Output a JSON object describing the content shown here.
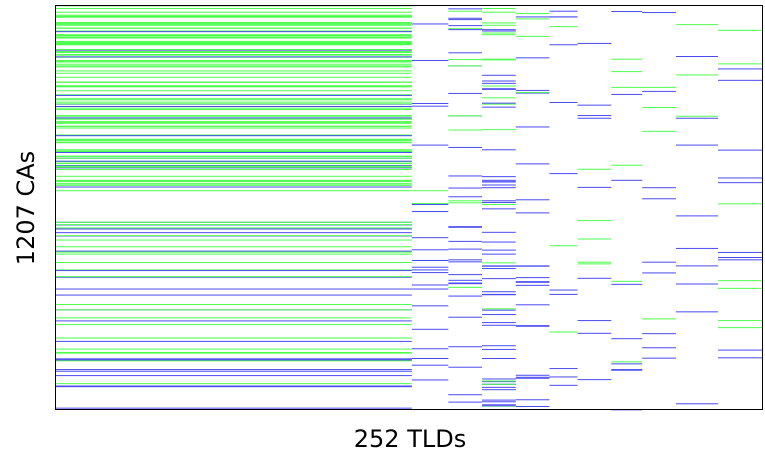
{
  "chart_data": {
    "type": "heatmap",
    "title": "",
    "xlabel": "252 TLDs",
    "ylabel": "1207 CAs",
    "n_cols": 252,
    "n_rows": 1207,
    "grid": false,
    "legend": "none",
    "colors": {
      "present_green": "#4dff4d",
      "present_blue": "#4a4af0",
      "empty": "#ffffff",
      "frame": "#000000"
    },
    "column_blocks": [
      {
        "cols": [
          0,
          126
        ],
        "green_rows": 1.0,
        "blue_rows": 0.24
      },
      {
        "cols": [
          127,
          139
        ],
        "green_rows": 0.04,
        "blue_rows": 0.12
      },
      {
        "cols": [
          140,
          151
        ],
        "green_rows": 0.06,
        "blue_rows": 0.14
      },
      {
        "cols": [
          152,
          163
        ],
        "green_rows": 0.1,
        "blue_rows": 0.28
      },
      {
        "cols": [
          164,
          175
        ],
        "green_rows": 0.02,
        "blue_rows": 0.1
      },
      {
        "cols": [
          176,
          185
        ],
        "green_rows": 0.03,
        "blue_rows": 0.06
      },
      {
        "cols": [
          186,
          197
        ],
        "green_rows": 0.05,
        "blue_rows": 0.05
      },
      {
        "cols": [
          198,
          208
        ],
        "green_rows": 0.04,
        "blue_rows": 0.04
      },
      {
        "cols": [
          209,
          220
        ],
        "green_rows": 0.05,
        "blue_rows": 0.04
      },
      {
        "cols": [
          221,
          235
        ],
        "green_rows": 0.06,
        "blue_rows": 0.05
      },
      {
        "cols": [
          236,
          251
        ],
        "green_rows": 0.06,
        "blue_rows": 0.06
      }
    ]
  }
}
